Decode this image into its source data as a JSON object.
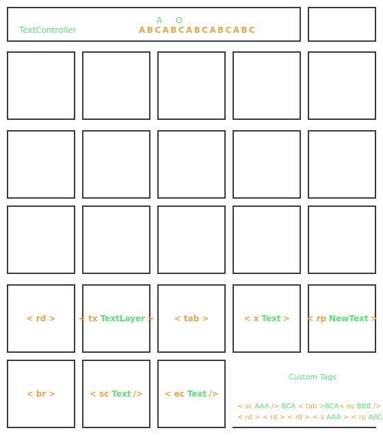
{
  "top": {
    "controller_label": "TextController",
    "ao_label": "AO",
    "sequence": "ABCABCABCABCABC"
  },
  "grid_tags": [
    {
      "tag": "< rd >",
      "text": "",
      "suffix": ""
    },
    {
      "tag": "< tx",
      "text": "TextLayer",
      "suffix": ">"
    },
    {
      "tag": "< tab >",
      "text": "",
      "suffix": ""
    },
    {
      "tag": "< x",
      "text": "Text",
      "suffix": ">"
    },
    {
      "tag": "< rp",
      "text": "NewText",
      "suffix": ">"
    },
    {
      "tag": "< br >",
      "text": "",
      "suffix": ""
    },
    {
      "tag": "< sc",
      "text": "Text",
      "suffix": "/>"
    },
    {
      "tag": "< ec",
      "text": "Text",
      "suffix": "/>"
    }
  ],
  "custom_tags": {
    "title": "Custom Tags",
    "line1": [
      {
        "text": "< sc ",
        "color": "orange"
      },
      {
        "text": "AAA",
        "color": "green"
      },
      {
        "text": " /> ",
        "color": "orange"
      },
      {
        "text": "BCA",
        "color": "green"
      },
      {
        "text": " < tab >",
        "color": "orange"
      },
      {
        "text": "BCA",
        "color": "green"
      },
      {
        "text": "< ec ",
        "color": "orange"
      },
      {
        "text": "BBB",
        "color": "green"
      },
      {
        "text": " />",
        "color": "orange"
      }
    ],
    "line2": [
      {
        "text": "< rd > < rd > < rd > < x ",
        "color": "orange"
      },
      {
        "text": "AAA",
        "color": "green"
      },
      {
        "text": " > < rp ",
        "color": "orange"
      },
      {
        "text": "ABC",
        "color": "green"
      },
      {
        "text": " >",
        "color": "orange"
      }
    ]
  },
  "colors": {
    "green": "#5fe07a",
    "orange": "#eaa64a",
    "border": "#3a3a3a"
  }
}
